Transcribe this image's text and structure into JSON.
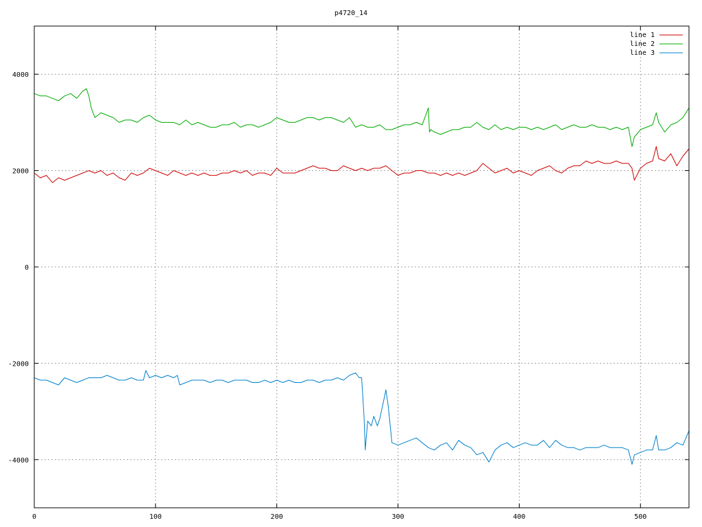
{
  "chart_data": {
    "type": "line",
    "title": "p4720_14",
    "xlabel": "",
    "ylabel": "",
    "xlim": [
      0,
      540
    ],
    "ylim": [
      -5000,
      5000
    ],
    "xticks": [
      0,
      100,
      200,
      300,
      400,
      500
    ],
    "yticks": [
      -4000,
      -2000,
      0,
      2000,
      4000
    ],
    "grid": true,
    "legend_position": "top-right",
    "series": [
      {
        "name": "line 1",
        "color": "#cc0000",
        "x": [
          0,
          5,
          10,
          15,
          20,
          25,
          30,
          35,
          40,
          45,
          50,
          55,
          60,
          65,
          70,
          75,
          80,
          85,
          90,
          95,
          100,
          105,
          110,
          115,
          120,
          125,
          130,
          135,
          140,
          145,
          150,
          155,
          160,
          165,
          170,
          175,
          180,
          185,
          190,
          195,
          200,
          205,
          210,
          215,
          220,
          225,
          230,
          235,
          240,
          245,
          250,
          255,
          260,
          265,
          270,
          275,
          280,
          285,
          290,
          295,
          300,
          305,
          310,
          315,
          320,
          325,
          330,
          335,
          340,
          345,
          350,
          355,
          360,
          365,
          370,
          375,
          380,
          385,
          390,
          395,
          400,
          405,
          410,
          415,
          420,
          425,
          430,
          435,
          440,
          445,
          450,
          455,
          460,
          465,
          470,
          475,
          480,
          485,
          490,
          493,
          495,
          500,
          505,
          510,
          513,
          515,
          520,
          525,
          530,
          535,
          540
        ],
        "y": [
          1950,
          1850,
          1900,
          1750,
          1850,
          1800,
          1850,
          1900,
          1950,
          2000,
          1950,
          2000,
          1900,
          1950,
          1850,
          1800,
          1950,
          1900,
          1950,
          2050,
          2000,
          1950,
          1900,
          2000,
          1950,
          1900,
          1950,
          1900,
          1950,
          1900,
          1900,
          1950,
          1950,
          2000,
          1950,
          2000,
          1900,
          1950,
          1950,
          1900,
          2050,
          1950,
          1950,
          1950,
          2000,
          2050,
          2100,
          2050,
          2050,
          2000,
          2000,
          2100,
          2050,
          2000,
          2050,
          2000,
          2050,
          2050,
          2100,
          2000,
          1900,
          1950,
          1950,
          2000,
          2000,
          1950,
          1950,
          1900,
          1950,
          1900,
          1950,
          1900,
          1950,
          2000,
          2150,
          2050,
          1950,
          2000,
          2050,
          1950,
          2000,
          1950,
          1900,
          2000,
          2050,
          2100,
          2000,
          1950,
          2050,
          2100,
          2100,
          2200,
          2150,
          2200,
          2150,
          2150,
          2200,
          2150,
          2150,
          2050,
          1800,
          2050,
          2150,
          2200,
          2500,
          2250,
          2200,
          2350,
          2100,
          2300,
          2450
        ]
      },
      {
        "name": "line 2",
        "color": "#00aa00",
        "x": [
          0,
          5,
          10,
          15,
          20,
          25,
          30,
          35,
          40,
          43,
          45,
          47,
          50,
          55,
          60,
          65,
          70,
          75,
          80,
          85,
          90,
          95,
          100,
          105,
          110,
          115,
          120,
          125,
          130,
          135,
          140,
          145,
          150,
          155,
          160,
          165,
          170,
          175,
          180,
          185,
          190,
          195,
          200,
          205,
          210,
          215,
          220,
          225,
          230,
          235,
          240,
          245,
          250,
          255,
          260,
          265,
          270,
          275,
          280,
          285,
          290,
          295,
          300,
          305,
          310,
          315,
          320,
          325,
          326,
          327,
          330,
          335,
          340,
          345,
          350,
          355,
          360,
          365,
          370,
          375,
          380,
          385,
          390,
          395,
          400,
          405,
          410,
          415,
          420,
          425,
          430,
          435,
          440,
          445,
          450,
          455,
          460,
          465,
          470,
          475,
          480,
          485,
          490,
          493,
          495,
          500,
          505,
          510,
          513,
          515,
          520,
          525,
          530,
          535,
          540
        ],
        "y": [
          3600,
          3550,
          3550,
          3500,
          3450,
          3550,
          3600,
          3500,
          3650,
          3700,
          3550,
          3300,
          3100,
          3200,
          3150,
          3100,
          3000,
          3050,
          3050,
          3000,
          3100,
          3150,
          3050,
          3000,
          3000,
          3000,
          2950,
          3050,
          2950,
          3000,
          2950,
          2900,
          2900,
          2950,
          2950,
          3000,
          2900,
          2950,
          2950,
          2900,
          2950,
          3000,
          3100,
          3050,
          3000,
          3000,
          3050,
          3100,
          3100,
          3050,
          3100,
          3100,
          3050,
          3000,
          3100,
          2900,
          2950,
          2900,
          2900,
          2950,
          2850,
          2850,
          2900,
          2950,
          2950,
          3000,
          2950,
          3300,
          2800,
          2850,
          2800,
          2750,
          2800,
          2850,
          2850,
          2900,
          2900,
          3000,
          2900,
          2850,
          2950,
          2850,
          2900,
          2850,
          2900,
          2900,
          2850,
          2900,
          2850,
          2900,
          2950,
          2850,
          2900,
          2950,
          2900,
          2900,
          2950,
          2900,
          2900,
          2850,
          2900,
          2850,
          2900,
          2500,
          2700,
          2850,
          2900,
          2950,
          3200,
          3000,
          2800,
          2950,
          3000,
          3100,
          3300
        ]
      },
      {
        "name": "line 3",
        "color": "#0080cc",
        "x": [
          0,
          5,
          10,
          15,
          20,
          25,
          30,
          35,
          40,
          45,
          50,
          55,
          60,
          65,
          70,
          75,
          80,
          85,
          90,
          92,
          95,
          100,
          105,
          110,
          115,
          118,
          120,
          125,
          130,
          135,
          140,
          145,
          150,
          155,
          160,
          165,
          170,
          175,
          180,
          185,
          190,
          195,
          200,
          205,
          210,
          215,
          220,
          225,
          230,
          235,
          240,
          245,
          250,
          255,
          260,
          265,
          268,
          270,
          272,
          273,
          275,
          278,
          280,
          283,
          285,
          288,
          290,
          292,
          295,
          300,
          305,
          310,
          315,
          320,
          325,
          330,
          335,
          340,
          345,
          350,
          355,
          360,
          365,
          370,
          375,
          380,
          385,
          390,
          395,
          400,
          405,
          410,
          415,
          420,
          425,
          430,
          435,
          440,
          445,
          450,
          455,
          460,
          465,
          470,
          475,
          480,
          485,
          490,
          493,
          495,
          500,
          505,
          510,
          513,
          515,
          520,
          525,
          530,
          535,
          540
        ],
        "y": [
          -2300,
          -2350,
          -2350,
          -2400,
          -2450,
          -2300,
          -2350,
          -2400,
          -2350,
          -2300,
          -2300,
          -2300,
          -2250,
          -2300,
          -2350,
          -2350,
          -2300,
          -2350,
          -2350,
          -2150,
          -2300,
          -2250,
          -2300,
          -2250,
          -2300,
          -2250,
          -2450,
          -2400,
          -2350,
          -2350,
          -2350,
          -2400,
          -2350,
          -2350,
          -2400,
          -2350,
          -2350,
          -2350,
          -2400,
          -2400,
          -2350,
          -2400,
          -2350,
          -2400,
          -2350,
          -2400,
          -2400,
          -2350,
          -2350,
          -2400,
          -2350,
          -2350,
          -2300,
          -2350,
          -2250,
          -2200,
          -2300,
          -2300,
          -3100,
          -3800,
          -3200,
          -3300,
          -3100,
          -3300,
          -3150,
          -2800,
          -2550,
          -2900,
          -3650,
          -3700,
          -3650,
          -3600,
          -3550,
          -3650,
          -3750,
          -3800,
          -3700,
          -3650,
          -3800,
          -3600,
          -3700,
          -3750,
          -3900,
          -3850,
          -4050,
          -3800,
          -3700,
          -3650,
          -3750,
          -3700,
          -3650,
          -3700,
          -3700,
          -3600,
          -3750,
          -3600,
          -3700,
          -3750,
          -3750,
          -3800,
          -3750,
          -3750,
          -3750,
          -3700,
          -3750,
          -3750,
          -3750,
          -3800,
          -4100,
          -3900,
          -3850,
          -3800,
          -3800,
          -3500,
          -3800,
          -3800,
          -3750,
          -3650,
          -3700,
          -3400
        ]
      }
    ]
  }
}
